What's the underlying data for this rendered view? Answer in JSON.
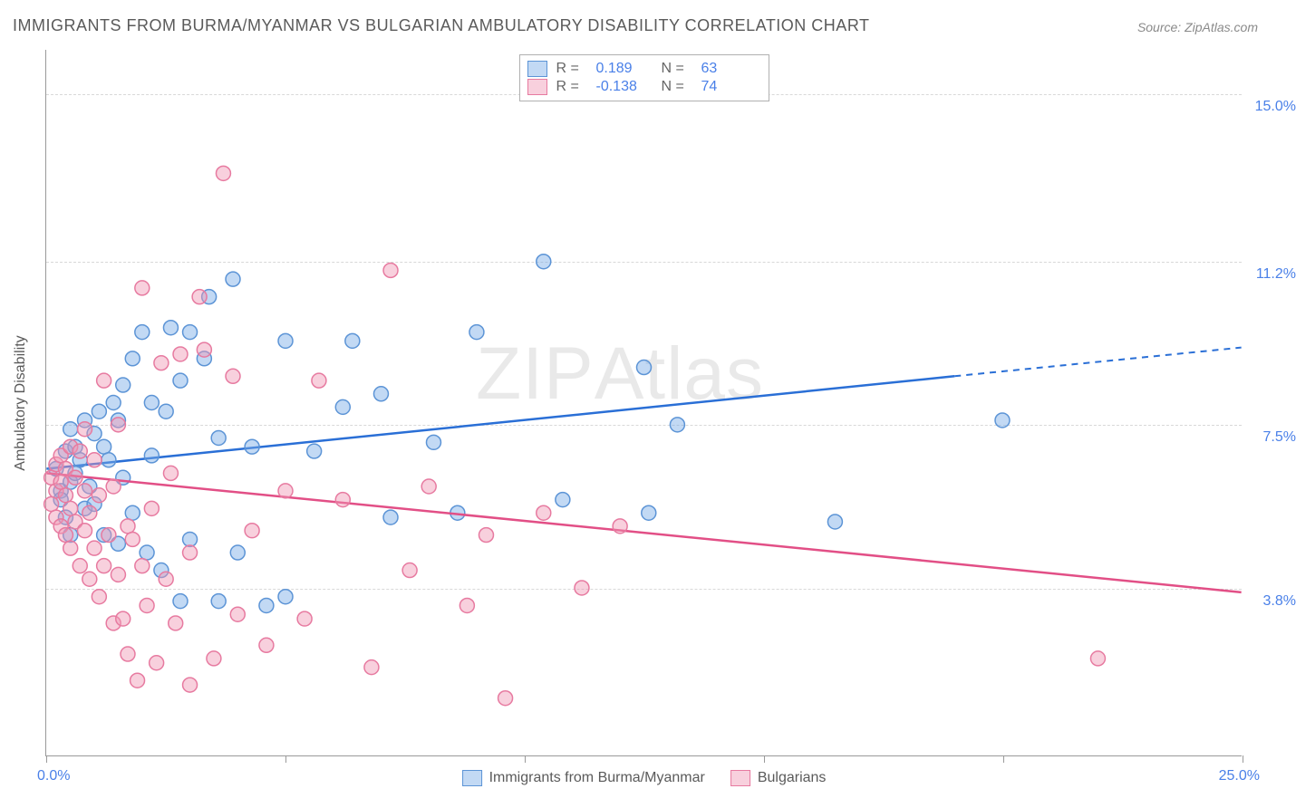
{
  "title": "IMMIGRANTS FROM BURMA/MYANMAR VS BULGARIAN AMBULATORY DISABILITY CORRELATION CHART",
  "source_label": "Source: ZipAtlas.com",
  "watermark_left": "ZIP",
  "watermark_right": "Atlas",
  "chart": {
    "type": "scatter",
    "background_color": "#ffffff",
    "grid_color": "#d8d8d8",
    "axis_color": "#9a9a9a",
    "tick_label_color": "#4a80e8",
    "text_color": "#5a5a5a",
    "x_axis": {
      "min": 0.0,
      "max": 25.0,
      "min_label": "0.0%",
      "max_label": "25.0%",
      "ticks": [
        0,
        5,
        10,
        15,
        20,
        25
      ]
    },
    "y_axis": {
      "title": "Ambulatory Disability",
      "min": 0.0,
      "max": 16.0,
      "grid": [
        {
          "value": 3.8,
          "label": "3.8%"
        },
        {
          "value": 7.5,
          "label": "7.5%"
        },
        {
          "value": 11.2,
          "label": "11.2%"
        },
        {
          "value": 15.0,
          "label": "15.0%"
        }
      ]
    },
    "series": [
      {
        "id": "burma",
        "label": "Immigrants from Burma/Myanmar",
        "fill": "rgba(120,170,230,0.45)",
        "stroke": "#5c94d6",
        "line_color": "#2a6fd6",
        "r_label": "R =",
        "r_value": "0.189",
        "n_label": "N =",
        "n_value": "63",
        "trend": {
          "x0": 0,
          "y0": 6.5,
          "x1_solid": 19.0,
          "y1_solid": 8.6,
          "x1_dash": 25.0,
          "y1_dash": 9.25
        },
        "points": [
          [
            0.2,
            6.5
          ],
          [
            0.3,
            6.0
          ],
          [
            0.3,
            5.8
          ],
          [
            0.4,
            6.9
          ],
          [
            0.4,
            5.4
          ],
          [
            0.5,
            6.2
          ],
          [
            0.5,
            5.0
          ],
          [
            0.5,
            7.4
          ],
          [
            0.6,
            7.0
          ],
          [
            0.6,
            6.4
          ],
          [
            0.7,
            6.7
          ],
          [
            0.8,
            5.6
          ],
          [
            0.8,
            7.6
          ],
          [
            0.9,
            6.1
          ],
          [
            1.0,
            5.7
          ],
          [
            1.0,
            7.3
          ],
          [
            1.1,
            7.8
          ],
          [
            1.2,
            5.0
          ],
          [
            1.2,
            7.0
          ],
          [
            1.3,
            6.7
          ],
          [
            1.4,
            8.0
          ],
          [
            1.5,
            4.8
          ],
          [
            1.5,
            7.6
          ],
          [
            1.6,
            6.3
          ],
          [
            1.6,
            8.4
          ],
          [
            1.8,
            5.5
          ],
          [
            1.8,
            9.0
          ],
          [
            2.0,
            9.6
          ],
          [
            2.1,
            4.6
          ],
          [
            2.2,
            6.8
          ],
          [
            2.2,
            8.0
          ],
          [
            2.4,
            4.2
          ],
          [
            2.5,
            7.8
          ],
          [
            2.6,
            9.7
          ],
          [
            2.8,
            3.5
          ],
          [
            2.8,
            8.5
          ],
          [
            3.0,
            4.9
          ],
          [
            3.0,
            9.6
          ],
          [
            3.3,
            9.0
          ],
          [
            3.4,
            10.4
          ],
          [
            3.6,
            3.5
          ],
          [
            3.6,
            7.2
          ],
          [
            3.9,
            10.8
          ],
          [
            4.0,
            4.6
          ],
          [
            4.3,
            7.0
          ],
          [
            4.6,
            3.4
          ],
          [
            5.0,
            9.4
          ],
          [
            5.0,
            3.6
          ],
          [
            5.6,
            6.9
          ],
          [
            6.2,
            7.9
          ],
          [
            6.4,
            9.4
          ],
          [
            7.0,
            8.2
          ],
          [
            7.2,
            5.4
          ],
          [
            8.1,
            7.1
          ],
          [
            8.6,
            5.5
          ],
          [
            9.0,
            9.6
          ],
          [
            10.4,
            11.2
          ],
          [
            10.8,
            5.8
          ],
          [
            12.5,
            8.8
          ],
          [
            12.6,
            5.5
          ],
          [
            13.2,
            7.5
          ],
          [
            16.5,
            5.3
          ],
          [
            20.0,
            7.6
          ]
        ]
      },
      {
        "id": "bulgarians",
        "label": "Bulgarians",
        "fill": "rgba(240,150,180,0.45)",
        "stroke": "#e77aa0",
        "line_color": "#e24f86",
        "r_label": "R =",
        "r_value": "-0.138",
        "n_label": "N =",
        "n_value": "74",
        "trend": {
          "x0": 0,
          "y0": 6.4,
          "x1_solid": 25.0,
          "y1_solid": 3.7,
          "x1_dash": 25.0,
          "y1_dash": 3.7
        },
        "points": [
          [
            0.1,
            6.3
          ],
          [
            0.1,
            5.7
          ],
          [
            0.2,
            6.6
          ],
          [
            0.2,
            5.4
          ],
          [
            0.2,
            6.0
          ],
          [
            0.3,
            6.8
          ],
          [
            0.3,
            5.2
          ],
          [
            0.3,
            6.2
          ],
          [
            0.4,
            5.9
          ],
          [
            0.4,
            6.5
          ],
          [
            0.4,
            5.0
          ],
          [
            0.5,
            7.0
          ],
          [
            0.5,
            5.6
          ],
          [
            0.5,
            4.7
          ],
          [
            0.6,
            6.3
          ],
          [
            0.6,
            5.3
          ],
          [
            0.7,
            6.9
          ],
          [
            0.7,
            4.3
          ],
          [
            0.8,
            7.4
          ],
          [
            0.8,
            5.1
          ],
          [
            0.8,
            6.0
          ],
          [
            0.9,
            5.5
          ],
          [
            0.9,
            4.0
          ],
          [
            1.0,
            6.7
          ],
          [
            1.0,
            4.7
          ],
          [
            1.1,
            5.9
          ],
          [
            1.1,
            3.6
          ],
          [
            1.2,
            8.5
          ],
          [
            1.2,
            4.3
          ],
          [
            1.3,
            5.0
          ],
          [
            1.4,
            3.0
          ],
          [
            1.4,
            6.1
          ],
          [
            1.5,
            4.1
          ],
          [
            1.5,
            7.5
          ],
          [
            1.6,
            3.1
          ],
          [
            1.7,
            5.2
          ],
          [
            1.7,
            2.3
          ],
          [
            1.8,
            4.9
          ],
          [
            1.9,
            1.7
          ],
          [
            2.0,
            4.3
          ],
          [
            2.0,
            10.6
          ],
          [
            2.1,
            3.4
          ],
          [
            2.2,
            5.6
          ],
          [
            2.3,
            2.1
          ],
          [
            2.4,
            8.9
          ],
          [
            2.5,
            4.0
          ],
          [
            2.6,
            6.4
          ],
          [
            2.7,
            3.0
          ],
          [
            2.8,
            9.1
          ],
          [
            3.0,
            4.6
          ],
          [
            3.0,
            1.6
          ],
          [
            3.2,
            10.4
          ],
          [
            3.3,
            9.2
          ],
          [
            3.5,
            2.2
          ],
          [
            3.7,
            13.2
          ],
          [
            3.9,
            8.6
          ],
          [
            4.0,
            3.2
          ],
          [
            4.3,
            5.1
          ],
          [
            4.6,
            2.5
          ],
          [
            5.0,
            6.0
          ],
          [
            5.4,
            3.1
          ],
          [
            5.7,
            8.5
          ],
          [
            6.2,
            5.8
          ],
          [
            6.8,
            2.0
          ],
          [
            7.2,
            11.0
          ],
          [
            7.6,
            4.2
          ],
          [
            8.0,
            6.1
          ],
          [
            8.8,
            3.4
          ],
          [
            9.2,
            5.0
          ],
          [
            9.6,
            1.3
          ],
          [
            10.4,
            5.5
          ],
          [
            11.2,
            3.8
          ],
          [
            12.0,
            5.2
          ],
          [
            22.0,
            2.2
          ]
        ]
      }
    ]
  }
}
